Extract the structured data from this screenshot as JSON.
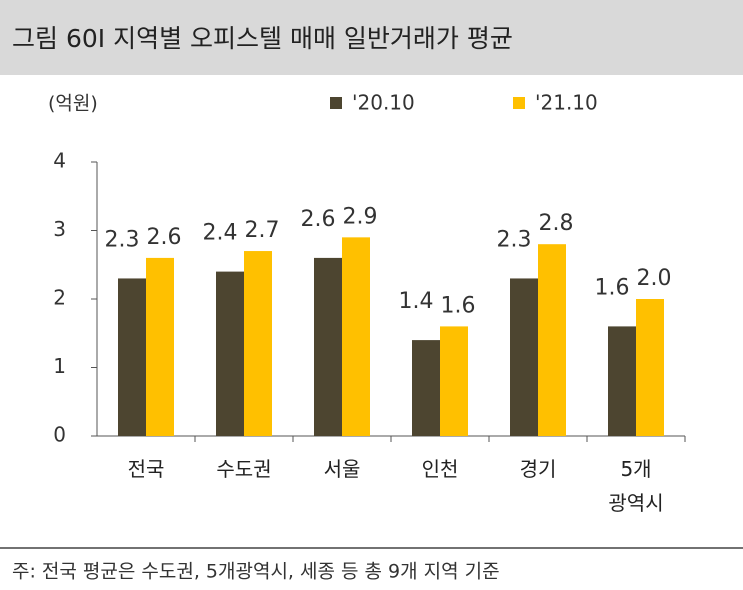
{
  "chart_data": {
    "type": "bar",
    "title": "그림 60I 지역별 오피스텔 매매 일반거래가 평균",
    "y_label": "(억원)",
    "categories": [
      "전국",
      "수도권",
      "서울",
      "인천",
      "경기",
      "5개\n광역시"
    ],
    "series": [
      {
        "name": "'20.10",
        "color": "#4d4530",
        "values": [
          2.3,
          2.4,
          2.6,
          1.4,
          2.3,
          1.6
        ],
        "value_labels": [
          "2.3",
          "2.4",
          "2.6",
          "1.4",
          "2.3",
          "1.6"
        ]
      },
      {
        "name": "'21.10",
        "color": "#ffc000",
        "values": [
          2.6,
          2.7,
          2.9,
          1.6,
          2.8,
          2.0
        ],
        "value_labels": [
          "2.6",
          "2.7",
          "2.9",
          "1.6",
          "2.8",
          "2.0"
        ]
      }
    ],
    "ylim": [
      0,
      4
    ],
    "yticks": [
      0,
      1,
      2,
      3,
      4
    ],
    "note": "주: 전국 평균은 수도권, 5개광역시, 세종 등 총 9개 지역 기준"
  }
}
